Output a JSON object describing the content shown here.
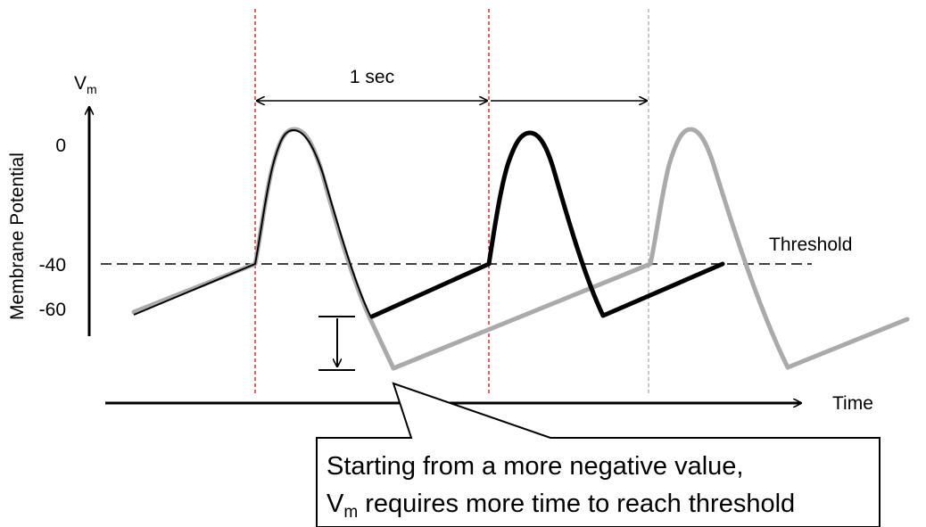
{
  "axes": {
    "y_label_main": "V",
    "y_label_sub": "m",
    "y_axis_title": "Membrane Potential",
    "y_ticks": [
      "0",
      "-40",
      "-60"
    ],
    "x_axis_title": "Time"
  },
  "threshold_label": "Threshold",
  "interval_label": "1 sec",
  "callout": {
    "line1": "Starting from a more negative value,",
    "line2_prefix": "V",
    "line2_sub": "m",
    "line2_rest": " requires more time to reach threshold"
  },
  "colors": {
    "trace_normal": "#000000",
    "trace_hyperpolarized": "#aaaaaa",
    "marker_red": "#e8191c",
    "marker_gray": "#b0b0b0"
  }
}
